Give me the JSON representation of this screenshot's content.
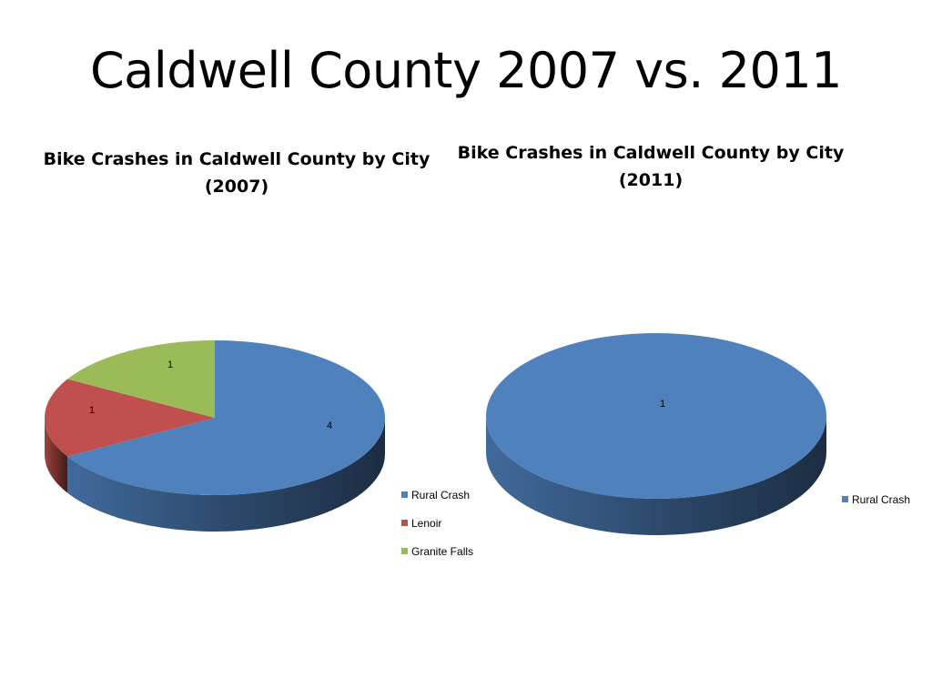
{
  "slide": {
    "title": "Caldwell County 2007 vs. 2011"
  },
  "chart_data": [
    {
      "type": "pie",
      "title": "Bike Crashes in Caldwell County by City\n(2007)",
      "categories": [
        "Rural Crash",
        "Lenoir",
        "Granite Falls"
      ],
      "values": [
        4,
        1,
        1
      ],
      "data_labels": [
        "4",
        "1",
        "1"
      ],
      "colors": [
        "#4F81BD",
        "#C0504D",
        "#9BBB59"
      ],
      "legend": "right"
    },
    {
      "type": "pie",
      "title": "Bike Crashes in Caldwell County by City\n(2011)",
      "categories": [
        "Rural Crash"
      ],
      "values": [
        1
      ],
      "data_labels": [
        "1"
      ],
      "colors": [
        "#4F81BD"
      ],
      "legend": "right"
    }
  ]
}
